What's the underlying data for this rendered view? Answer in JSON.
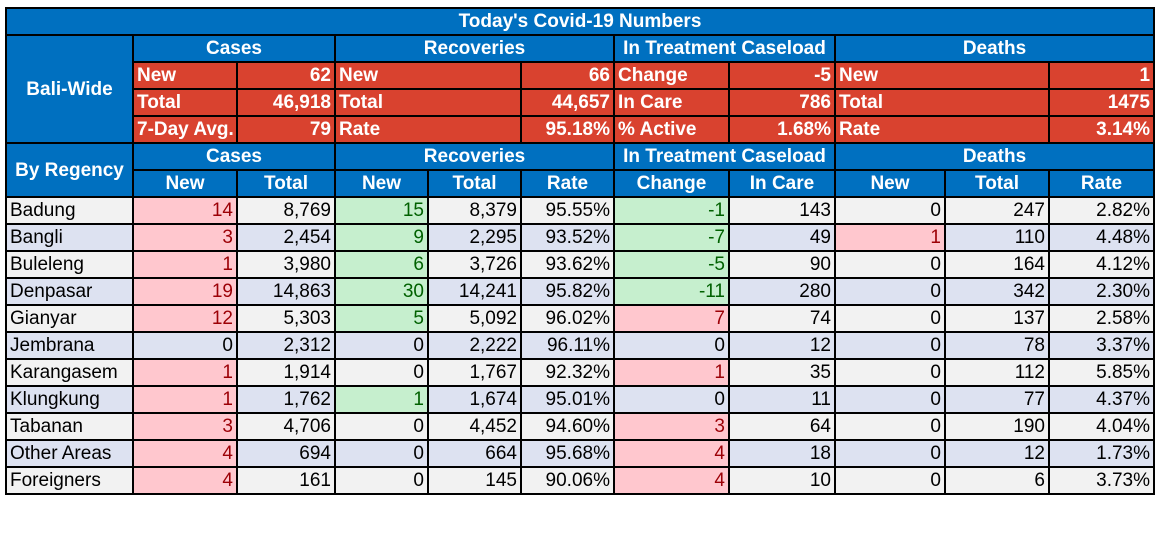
{
  "title": "Today's Covid-19 Numbers",
  "bali_label": "Bali-Wide",
  "regency_label": "By Regency",
  "groups": {
    "cases": "Cases",
    "recoveries": "Recoveries",
    "treatment": "In Treatment Caseload",
    "deaths": "Deaths"
  },
  "bali": {
    "cases": [
      [
        "New",
        "62"
      ],
      [
        "Total",
        "46,918"
      ],
      [
        "7-Day Avg.",
        "79"
      ]
    ],
    "recoveries": [
      [
        "New",
        "66"
      ],
      [
        "Total",
        "44,657"
      ],
      [
        "Rate",
        "95.18%"
      ]
    ],
    "treatment": [
      [
        "Change",
        "-5"
      ],
      [
        "In Care",
        "786"
      ],
      [
        "% Active",
        "1.68%"
      ]
    ],
    "deaths": [
      [
        "New",
        "1"
      ],
      [
        "Total",
        "1475"
      ],
      [
        "Rate",
        "3.14%"
      ]
    ]
  },
  "subheaders": [
    "New",
    "Total",
    "New",
    "Total",
    "Rate",
    "Change",
    "In Care",
    "New",
    "Total",
    "Rate"
  ],
  "rows": [
    {
      "name": "Badung",
      "cells": [
        "14",
        "8,769",
        "15",
        "8,379",
        "95.55%",
        "-1",
        "143",
        "0",
        "247",
        "2.82%"
      ]
    },
    {
      "name": "Bangli",
      "cells": [
        "3",
        "2,454",
        "9",
        "2,295",
        "93.52%",
        "-7",
        "49",
        "1",
        "110",
        "4.48%"
      ]
    },
    {
      "name": "Buleleng",
      "cells": [
        "1",
        "3,980",
        "6",
        "3,726",
        "93.62%",
        "-5",
        "90",
        "0",
        "164",
        "4.12%"
      ]
    },
    {
      "name": "Denpasar",
      "cells": [
        "19",
        "14,863",
        "30",
        "14,241",
        "95.82%",
        "-11",
        "280",
        "0",
        "342",
        "2.30%"
      ]
    },
    {
      "name": "Gianyar",
      "cells": [
        "12",
        "5,303",
        "5",
        "5,092",
        "96.02%",
        "7",
        "74",
        "0",
        "137",
        "2.58%"
      ]
    },
    {
      "name": "Jembrana",
      "cells": [
        "0",
        "2,312",
        "0",
        "2,222",
        "96.11%",
        "0",
        "12",
        "0",
        "78",
        "3.37%"
      ]
    },
    {
      "name": "Karangasem",
      "cells": [
        "1",
        "1,914",
        "0",
        "1,767",
        "92.32%",
        "1",
        "35",
        "0",
        "112",
        "5.85%"
      ]
    },
    {
      "name": "Klungkung",
      "cells": [
        "1",
        "1,762",
        "1",
        "1,674",
        "95.01%",
        "0",
        "11",
        "0",
        "77",
        "4.37%"
      ]
    },
    {
      "name": "Tabanan",
      "cells": [
        "3",
        "4,706",
        "0",
        "4,452",
        "94.60%",
        "3",
        "64",
        "0",
        "190",
        "4.04%"
      ]
    },
    {
      "name": "Other Areas",
      "cells": [
        "4",
        "694",
        "0",
        "664",
        "95.68%",
        "4",
        "18",
        "0",
        "12",
        "1.73%"
      ]
    },
    {
      "name": "Foreigners",
      "cells": [
        "4",
        "161",
        "0",
        "145",
        "90.06%",
        "4",
        "10",
        "0",
        "6",
        "3.73%"
      ]
    }
  ],
  "colors": {
    "header_blue": "#0070c0",
    "summary_red": "#d9422f",
    "increase_fill": "#ffc7ce",
    "increase_text": "#9c0006",
    "decrease_fill": "#c6efce",
    "decrease_text": "#006100",
    "row_band_light": "#f2f2f2",
    "row_band_blue": "#dde2f1"
  }
}
